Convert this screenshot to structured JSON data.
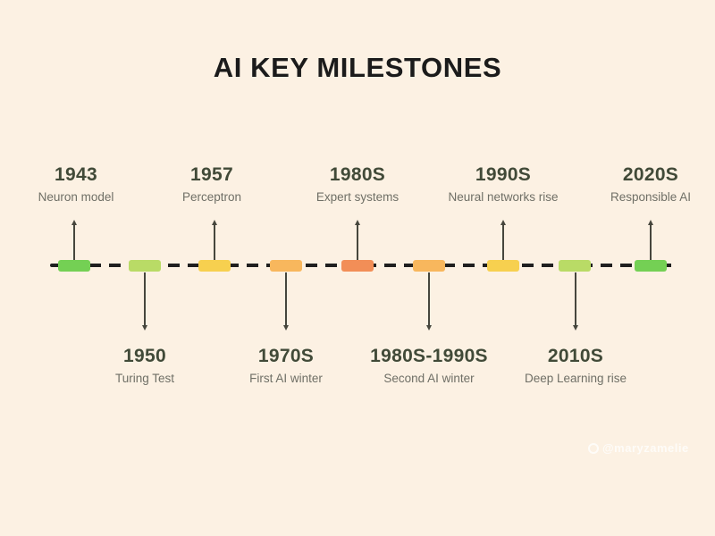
{
  "page": {
    "title": "AI KEY MILESTONES",
    "background_color": "#FCF1E3",
    "watermark": "@maryzamelie"
  },
  "timeline": {
    "orientation": "horizontal-dashed",
    "top_milestones": [
      {
        "year": "1943",
        "label": "Neuron model"
      },
      {
        "year": "1957",
        "label": "Perceptron"
      },
      {
        "year": "1980S",
        "label": "Expert systems"
      },
      {
        "year": "1990S",
        "label": "Neural networks rise"
      },
      {
        "year": "2020S",
        "label": "Responsible AI"
      }
    ],
    "bottom_milestones": [
      {
        "year": "1950",
        "label": "Turing Test"
      },
      {
        "year": "1970S",
        "label": "First AI winter"
      },
      {
        "year": "1980S-1990S",
        "label": "Second AI winter"
      },
      {
        "year": "2010S",
        "label": "Deep Learning rise"
      }
    ],
    "segments": [
      {
        "color": "#74D054"
      },
      {
        "color": "#B9DB66"
      },
      {
        "color": "#F7D04F"
      },
      {
        "color": "#F8B75D"
      },
      {
        "color": "#F28E57"
      },
      {
        "color": "#F8B75D"
      },
      {
        "color": "#F7D04F"
      },
      {
        "color": "#B9DB66"
      },
      {
        "color": "#74D054"
      }
    ]
  },
  "colors": {
    "background": "#FCF1E3",
    "title_text": "#1B1B1B",
    "year_text": "#414A38",
    "label_text": "#6F6F66",
    "line": "#1F1F1F",
    "stem": "#46463D"
  }
}
